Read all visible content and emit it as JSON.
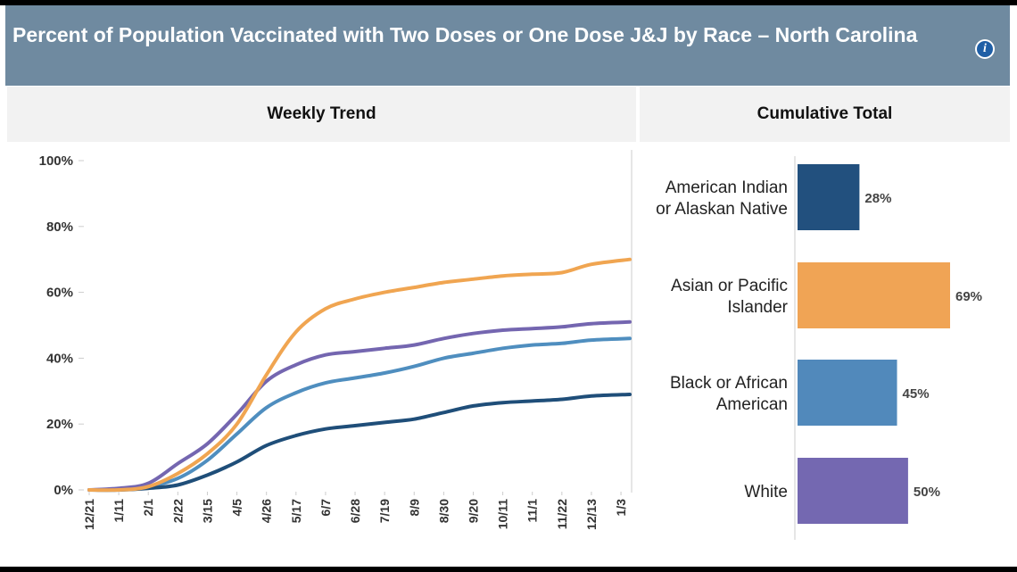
{
  "header": {
    "title": "Percent of Population Vaccinated with Two Doses or One Dose J&J by Race – North Carolina",
    "info_icon": "info-icon"
  },
  "tabs": {
    "left": "Weekly Trend",
    "right": "Cumulative Total"
  },
  "chart_data": [
    {
      "type": "line",
      "title": "Weekly Trend",
      "ylim": [
        0,
        100
      ],
      "y_ticks": [
        "0%",
        "20%",
        "40%",
        "60%",
        "80%",
        "100%"
      ],
      "x_ticks": [
        "12/21",
        "1/11",
        "2/1",
        "2/22",
        "3/15",
        "4/5",
        "4/26",
        "5/17",
        "6/7",
        "6/28",
        "7/19",
        "8/9",
        "8/30",
        "9/20",
        "10/11",
        "11/1",
        "11/22",
        "12/13",
        "1/3"
      ],
      "series": [
        {
          "name": "American Indian or Alaskan Native",
          "color": "#1f4e79",
          "values": [
            0,
            0,
            0.5,
            1.5,
            4.5,
            8.5,
            13.5,
            16.5,
            18.5,
            19.5,
            20.5,
            21.5,
            23.5,
            25.5,
            26.5,
            27,
            27.5,
            28.5,
            29
          ]
        },
        {
          "name": "Asian or Pacific Islander",
          "color": "#f0a551",
          "values": [
            0,
            0,
            1,
            5,
            11,
            20,
            35,
            48,
            55,
            58,
            60,
            61.5,
            63,
            64,
            65,
            65.5,
            66,
            68.5,
            70
          ]
        },
        {
          "name": "Black or African American",
          "color": "#4f8ebf",
          "values": [
            0,
            0,
            1,
            3.5,
            9,
            17,
            25,
            29.5,
            32.5,
            34,
            35.5,
            37.5,
            40,
            41.5,
            43,
            44,
            44.5,
            45.5,
            46
          ]
        },
        {
          "name": "White",
          "color": "#7466b0",
          "values": [
            0,
            0.5,
            2,
            8,
            14,
            23,
            33,
            38,
            41,
            42,
            43,
            44,
            46,
            47.5,
            48.5,
            49,
            49.5,
            50.5,
            51
          ]
        }
      ]
    },
    {
      "type": "bar",
      "title": "Cumulative Total",
      "orientation": "horizontal",
      "categories": [
        {
          "name": "American Indian or Alaskan Native",
          "lines": [
            "American Indian",
            "or Alaskan Native"
          ],
          "color": "#22507e",
          "value": 28,
          "label": "28%"
        },
        {
          "name": "Asian or Pacific Islander",
          "lines": [
            "Asian or Pacific",
            "Islander"
          ],
          "color": "#f0a455",
          "value": 69,
          "label": "69%"
        },
        {
          "name": "Black or African American",
          "lines": [
            "Black or African",
            "American"
          ],
          "color": "#5189bb",
          "value": 45,
          "label": "45%"
        },
        {
          "name": "White",
          "lines": [
            "White"
          ],
          "color": "#7468b1",
          "value": 50,
          "label": "50%"
        }
      ]
    }
  ]
}
